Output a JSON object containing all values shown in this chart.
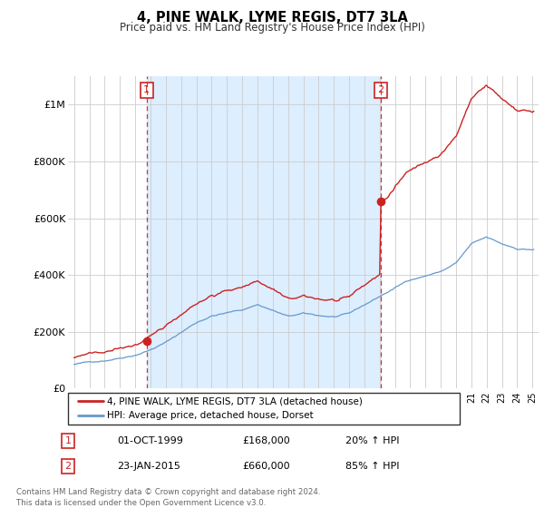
{
  "title": "4, PINE WALK, LYME REGIS, DT7 3LA",
  "subtitle": "Price paid vs. HM Land Registry's House Price Index (HPI)",
  "legend_line1": "4, PINE WALK, LYME REGIS, DT7 3LA (detached house)",
  "legend_line2": "HPI: Average price, detached house, Dorset",
  "annotation1_label": "1",
  "annotation1_date": "01-OCT-1999",
  "annotation1_price": "£168,000",
  "annotation1_hpi": "20% ↑ HPI",
  "annotation2_label": "2",
  "annotation2_date": "23-JAN-2015",
  "annotation2_price": "£660,000",
  "annotation2_hpi": "85% ↑ HPI",
  "footer": "Contains HM Land Registry data © Crown copyright and database right 2024.\nThis data is licensed under the Open Government Licence v3.0.",
  "sale1_year": 1999.75,
  "sale1_price": 168000,
  "sale2_year": 2015.07,
  "sale2_price": 660000,
  "hpi_color": "#6699CC",
  "price_color": "#CC2222",
  "vline_color": "#CC2222",
  "shade_color": "#DDEEFF",
  "ylim_max": 1100000,
  "ylim_min": 0,
  "yticks": [
    0,
    200000,
    400000,
    600000,
    800000,
    1000000
  ],
  "ytick_labels": [
    "£0",
    "£200K",
    "£400K",
    "£600K",
    "£800K",
    "£1M"
  ]
}
